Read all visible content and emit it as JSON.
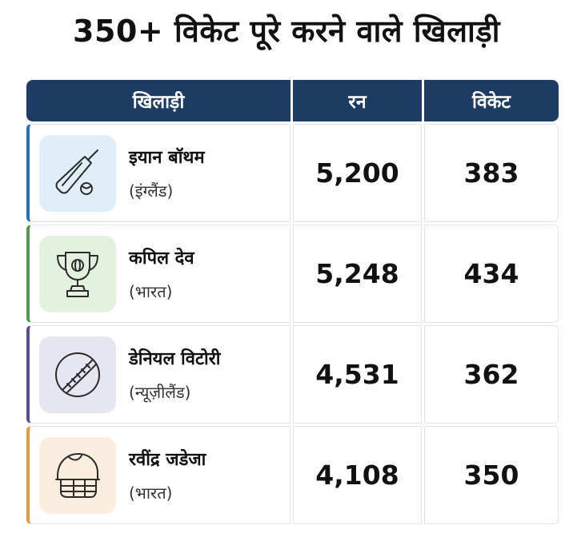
{
  "title": "350+ विकेट पूरे करने वाले खिलाड़ी",
  "header": {
    "player": "खिलाड़ी",
    "runs": "रन",
    "wickets": "विकेट"
  },
  "rows": [
    {
      "name": "इयान बॉथम",
      "country": "(इंग्लैंड)",
      "runs": "5,200",
      "wickets": "383",
      "icon": "cricket-bat-ball-icon",
      "accent": "#2a6fb8",
      "icon_bg": "#dfeef9"
    },
    {
      "name": "कपिल देव",
      "country": "(भारत)",
      "runs": "5,248",
      "wickets": "434",
      "icon": "trophy-icon",
      "accent": "#4e9a4a",
      "icon_bg": "#e3f1df"
    },
    {
      "name": "डेनियल विटोरी",
      "country": "(न्यूज़ीलैंड)",
      "runs": "4,531",
      "wickets": "362",
      "icon": "cricket-ball-icon",
      "accent": "#5a4e92",
      "icon_bg": "#e6e5f2"
    },
    {
      "name": "रवींद्र जडेजा",
      "country": "(भारत)",
      "runs": "4,108",
      "wickets": "350",
      "icon": "cricket-helmet-icon",
      "accent": "#e29a43",
      "icon_bg": "#fbeedf"
    }
  ]
}
